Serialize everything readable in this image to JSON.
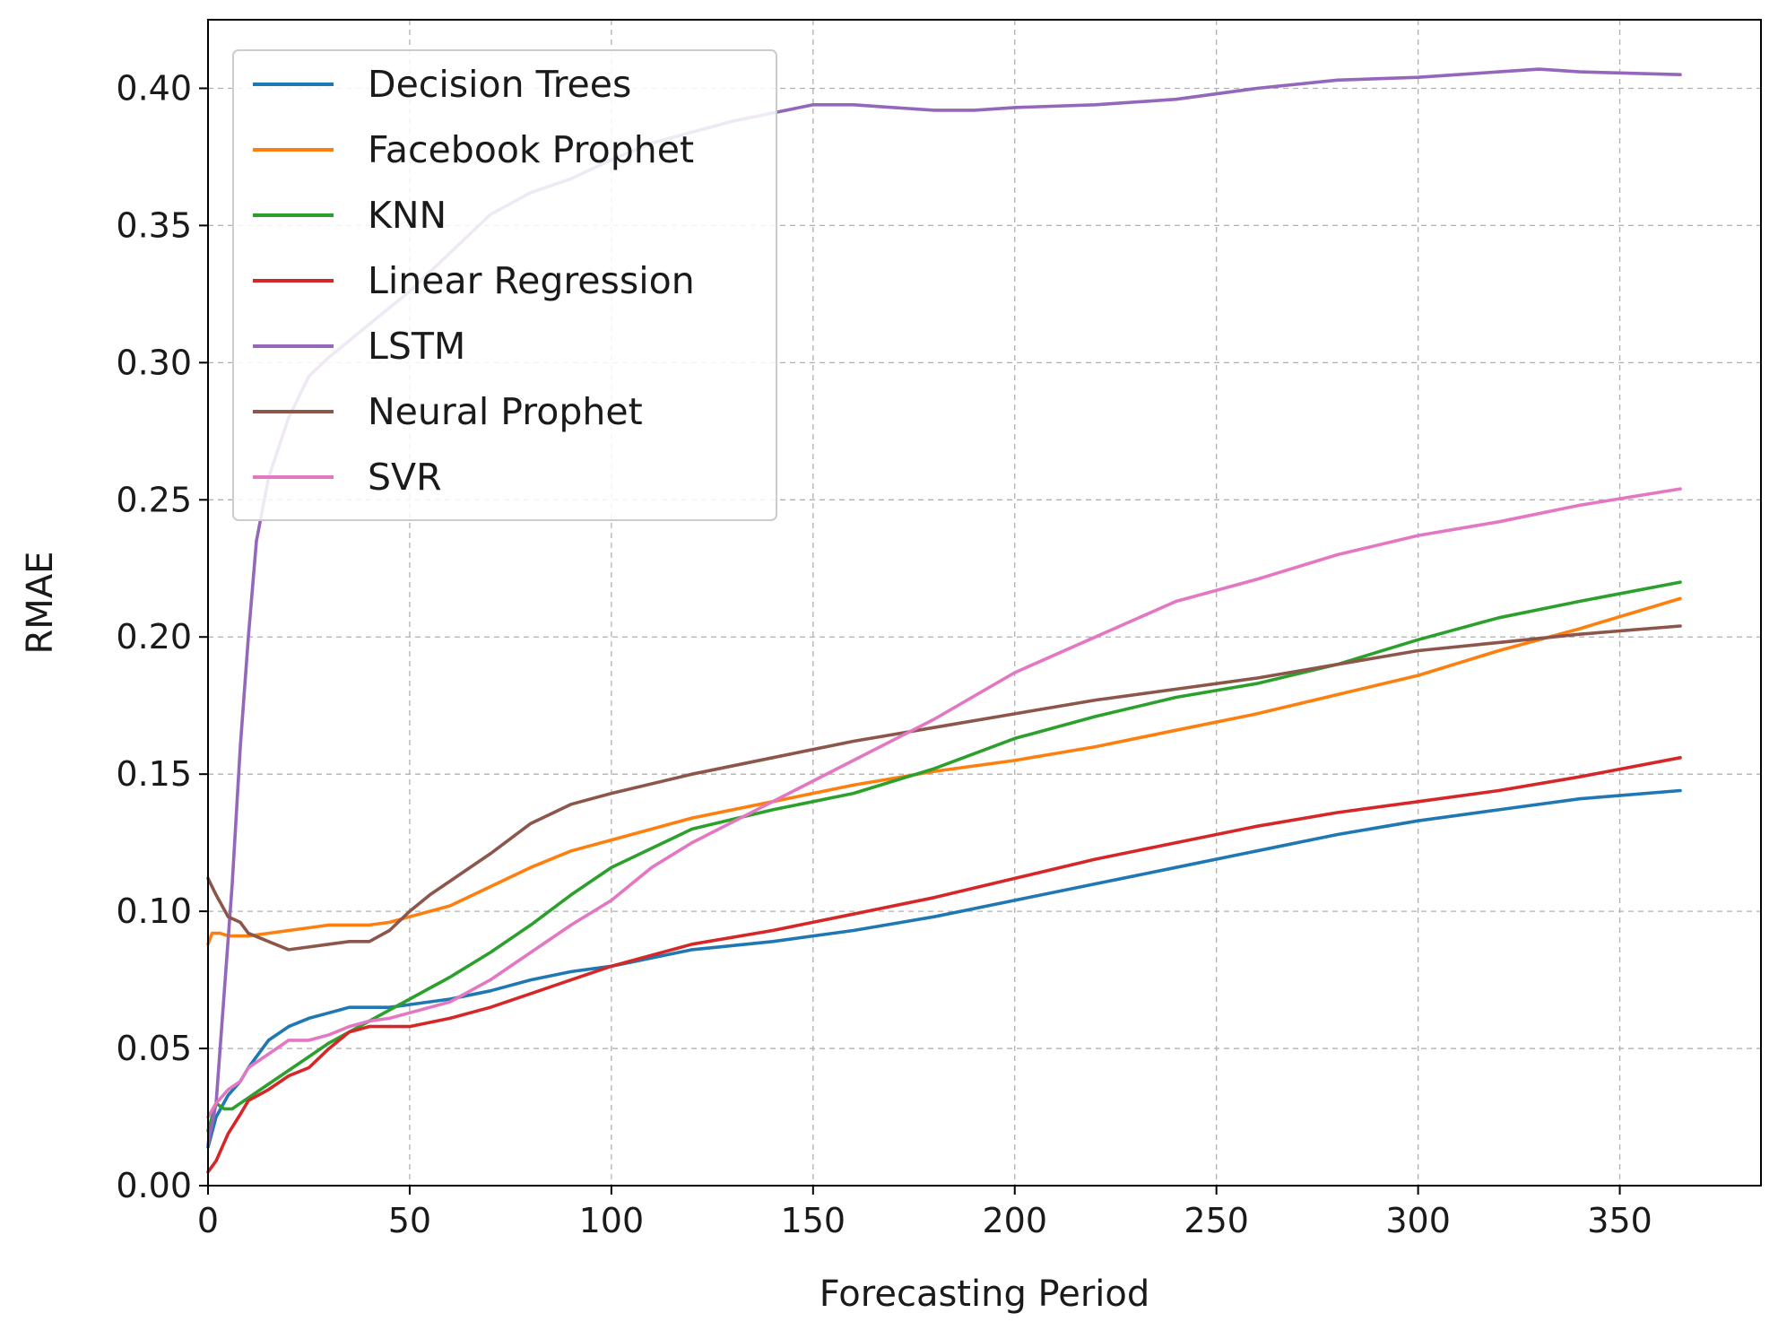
{
  "chart_data": {
    "type": "line",
    "title": "",
    "xlabel": "Forecasting Period",
    "ylabel": "RMAE",
    "xlim": [
      0,
      385
    ],
    "ylim": [
      0,
      0.425
    ],
    "xticks": [
      0,
      50,
      100,
      150,
      200,
      250,
      300,
      350
    ],
    "xtick_labels": [
      "0",
      "50",
      "100",
      "150",
      "200",
      "250",
      "300",
      "350"
    ],
    "yticks": [
      0.0,
      0.05,
      0.1,
      0.15,
      0.2,
      0.25,
      0.3,
      0.35,
      0.4
    ],
    "ytick_labels": [
      "0.00",
      "0.05",
      "0.10",
      "0.15",
      "0.20",
      "0.25",
      "0.30",
      "0.35",
      "0.40"
    ],
    "grid": true,
    "legend_position": "top-left",
    "series": [
      {
        "name": "Decision Trees",
        "color": "#1f77b4",
        "x": [
          0,
          2,
          5,
          8,
          10,
          15,
          20,
          25,
          30,
          35,
          40,
          45,
          50,
          60,
          70,
          80,
          90,
          100,
          120,
          140,
          160,
          180,
          200,
          220,
          240,
          260,
          280,
          300,
          320,
          340,
          365
        ],
        "y": [
          0.014,
          0.025,
          0.033,
          0.038,
          0.043,
          0.053,
          0.058,
          0.061,
          0.063,
          0.065,
          0.065,
          0.065,
          0.066,
          0.068,
          0.071,
          0.075,
          0.078,
          0.08,
          0.086,
          0.089,
          0.093,
          0.098,
          0.104,
          0.11,
          0.116,
          0.122,
          0.128,
          0.133,
          0.137,
          0.141,
          0.144
        ]
      },
      {
        "name": "Facebook Prophet",
        "color": "#ff7f0e",
        "x": [
          0,
          1,
          3,
          5,
          10,
          15,
          20,
          25,
          30,
          35,
          40,
          45,
          50,
          60,
          70,
          80,
          90,
          100,
          120,
          140,
          160,
          180,
          200,
          220,
          240,
          260,
          280,
          300,
          320,
          340,
          365
        ],
        "y": [
          0.088,
          0.092,
          0.092,
          0.091,
          0.091,
          0.092,
          0.093,
          0.094,
          0.095,
          0.095,
          0.095,
          0.096,
          0.098,
          0.102,
          0.109,
          0.116,
          0.122,
          0.126,
          0.134,
          0.14,
          0.146,
          0.151,
          0.155,
          0.16,
          0.166,
          0.172,
          0.179,
          0.186,
          0.195,
          0.203,
          0.214
        ]
      },
      {
        "name": "KNN",
        "color": "#2ca02c",
        "x": [
          0,
          2,
          4,
          6,
          8,
          10,
          15,
          20,
          25,
          30,
          35,
          40,
          45,
          50,
          60,
          70,
          80,
          90,
          100,
          120,
          140,
          160,
          180,
          200,
          220,
          240,
          260,
          280,
          300,
          320,
          340,
          365
        ],
        "y": [
          0.02,
          0.03,
          0.028,
          0.028,
          0.03,
          0.032,
          0.037,
          0.042,
          0.047,
          0.052,
          0.056,
          0.06,
          0.064,
          0.068,
          0.076,
          0.085,
          0.095,
          0.106,
          0.116,
          0.13,
          0.137,
          0.143,
          0.152,
          0.163,
          0.171,
          0.178,
          0.183,
          0.19,
          0.199,
          0.207,
          0.213,
          0.22
        ]
      },
      {
        "name": "Linear Regression",
        "color": "#d62728",
        "x": [
          0,
          2,
          5,
          8,
          10,
          15,
          20,
          25,
          30,
          35,
          40,
          45,
          50,
          60,
          70,
          80,
          90,
          100,
          120,
          140,
          160,
          180,
          200,
          220,
          240,
          260,
          280,
          300,
          320,
          340,
          365
        ],
        "y": [
          0.005,
          0.009,
          0.019,
          0.026,
          0.031,
          0.035,
          0.04,
          0.043,
          0.05,
          0.056,
          0.058,
          0.058,
          0.058,
          0.061,
          0.065,
          0.07,
          0.075,
          0.08,
          0.088,
          0.093,
          0.099,
          0.105,
          0.112,
          0.119,
          0.125,
          0.131,
          0.136,
          0.14,
          0.144,
          0.149,
          0.156
        ]
      },
      {
        "name": "LSTM",
        "color": "#9467bd",
        "x": [
          0,
          2,
          4,
          6,
          8,
          10,
          12,
          15,
          20,
          25,
          30,
          35,
          40,
          50,
          60,
          70,
          80,
          90,
          100,
          110,
          120,
          130,
          140,
          150,
          160,
          170,
          180,
          190,
          200,
          220,
          240,
          260,
          280,
          300,
          320,
          330,
          340,
          365
        ],
        "y": [
          0.015,
          0.03,
          0.07,
          0.11,
          0.16,
          0.2,
          0.235,
          0.258,
          0.28,
          0.295,
          0.302,
          0.308,
          0.314,
          0.326,
          0.34,
          0.354,
          0.362,
          0.367,
          0.374,
          0.38,
          0.384,
          0.388,
          0.391,
          0.394,
          0.394,
          0.393,
          0.392,
          0.392,
          0.393,
          0.394,
          0.396,
          0.4,
          0.403,
          0.404,
          0.406,
          0.407,
          0.406,
          0.405
        ]
      },
      {
        "name": "Neural Prophet",
        "color": "#8c564b",
        "x": [
          0,
          2,
          5,
          8,
          10,
          15,
          20,
          25,
          30,
          35,
          40,
          45,
          50,
          55,
          60,
          70,
          80,
          90,
          100,
          120,
          140,
          160,
          180,
          200,
          220,
          240,
          260,
          280,
          300,
          320,
          340,
          365
        ],
        "y": [
          0.112,
          0.106,
          0.098,
          0.096,
          0.092,
          0.089,
          0.086,
          0.087,
          0.088,
          0.089,
          0.089,
          0.093,
          0.1,
          0.106,
          0.111,
          0.121,
          0.132,
          0.139,
          0.143,
          0.15,
          0.156,
          0.162,
          0.167,
          0.172,
          0.177,
          0.181,
          0.185,
          0.19,
          0.195,
          0.198,
          0.201,
          0.204
        ]
      },
      {
        "name": "SVR",
        "color": "#e377c2",
        "x": [
          0,
          2,
          5,
          8,
          10,
          15,
          20,
          25,
          30,
          35,
          40,
          45,
          50,
          60,
          70,
          80,
          90,
          100,
          110,
          120,
          140,
          160,
          180,
          200,
          220,
          240,
          260,
          280,
          300,
          320,
          340,
          365
        ],
        "y": [
          0.025,
          0.03,
          0.035,
          0.038,
          0.043,
          0.048,
          0.053,
          0.053,
          0.055,
          0.058,
          0.06,
          0.061,
          0.063,
          0.067,
          0.075,
          0.085,
          0.095,
          0.104,
          0.116,
          0.125,
          0.14,
          0.155,
          0.17,
          0.187,
          0.2,
          0.213,
          0.221,
          0.23,
          0.237,
          0.242,
          0.248,
          0.254
        ]
      }
    ]
  }
}
